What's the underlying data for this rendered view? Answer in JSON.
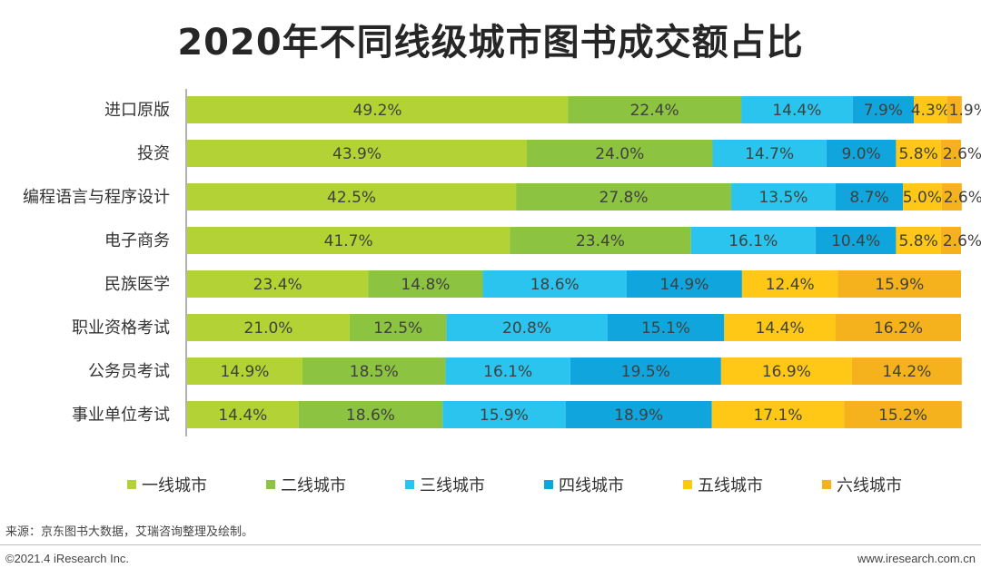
{
  "chart_data": {
    "type": "bar",
    "orientation": "horizontal",
    "stacked": true,
    "title": "2020年不同线级城市图书成交额占比",
    "categories": [
      "进口原版",
      "投资",
      "编程语言与程序设计",
      "电子商务",
      "民族医学",
      "职业资格考试",
      "公务员考试",
      "事业单位考试"
    ],
    "series": [
      {
        "name": "一线城市",
        "color": "#b2d235",
        "values": [
          49.2,
          43.9,
          42.5,
          41.7,
          23.4,
          21.0,
          14.9,
          14.4
        ]
      },
      {
        "name": "二线城市",
        "color": "#8cc340",
        "values": [
          22.4,
          24.0,
          27.8,
          23.4,
          14.8,
          12.5,
          18.5,
          18.6
        ]
      },
      {
        "name": "三线城市",
        "color": "#2bc4ee",
        "values": [
          14.4,
          14.7,
          13.5,
          16.1,
          18.6,
          20.8,
          16.1,
          15.9
        ]
      },
      {
        "name": "四线城市",
        "color": "#10a5dc",
        "values": [
          7.9,
          9.0,
          8.7,
          10.4,
          14.9,
          15.1,
          19.5,
          18.9
        ]
      },
      {
        "name": "五线城市",
        "color": "#ffc817",
        "values": [
          4.3,
          5.8,
          5.0,
          5.8,
          12.4,
          14.4,
          16.9,
          17.1
        ]
      },
      {
        "name": "六线城市",
        "color": "#f6b21c",
        "values": [
          1.9,
          2.6,
          2.6,
          2.6,
          15.9,
          16.2,
          14.2,
          15.2
        ]
      }
    ],
    "value_suffix": "%",
    "xlim": [
      0,
      100
    ],
    "legend_position": "bottom"
  },
  "source": "来源：京东图书大数据，艾瑞咨询整理及绘制。",
  "copyright": "©2021.4 iResearch Inc.",
  "website": "www.iresearch.com.cn"
}
